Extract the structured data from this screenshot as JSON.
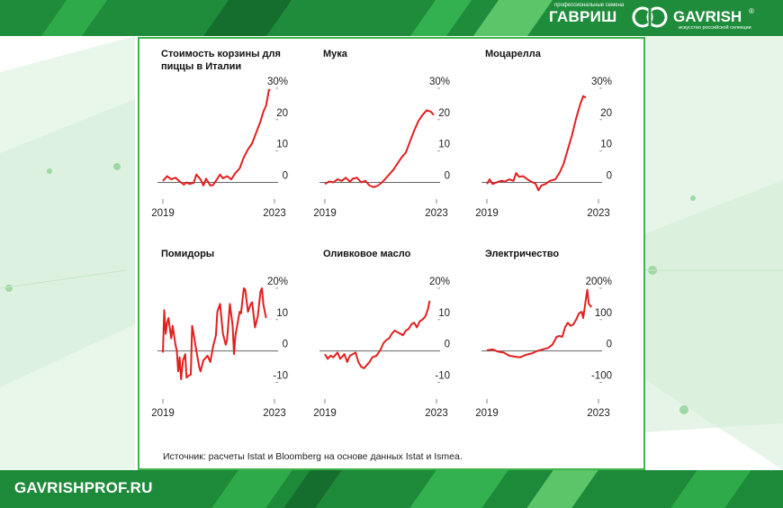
{
  "header": {
    "logo_tagline_top": "профессиональные семена",
    "logo_text_ru": "ГАВРИШ",
    "logo_text_lat": "GAVRISH",
    "logo_tagline_bottom": "искусство российской селекции",
    "logo_reg": "®"
  },
  "footer": {
    "site_url": "GAVRISHPROF.RU"
  },
  "source_note": "Источник: расчеты Istat и Bloomberg на основе данных Istat и Ismea.",
  "colors": {
    "line": "#e02020",
    "brand_green": "#1f8c3b",
    "panel_border": "#3db54a"
  },
  "chart_data": [
    {
      "type": "line",
      "title": "Стоимость корзины для пиццы в Италии",
      "yticks": [
        "30%",
        "20",
        "10",
        "0"
      ],
      "yvalues": [
        30,
        20,
        10,
        0
      ],
      "ylim": [
        -3,
        32
      ],
      "xlabels": [
        "2019",
        "2023"
      ],
      "xrange": [
        2019,
        2023
      ],
      "series": [
        {
          "values": [
            [
              2019.0,
              0.5
            ],
            [
              2019.15,
              2.0
            ],
            [
              2019.3,
              1.0
            ],
            [
              2019.45,
              1.5
            ],
            [
              2019.6,
              0.3
            ],
            [
              2019.75,
              -0.7
            ],
            [
              2019.85,
              0.0
            ],
            [
              2019.95,
              -0.5
            ],
            [
              2020.1,
              -0.2
            ],
            [
              2020.2,
              2.5
            ],
            [
              2020.35,
              1.0
            ],
            [
              2020.45,
              -1.0
            ],
            [
              2020.55,
              1.2
            ],
            [
              2020.7,
              -1.0
            ],
            [
              2020.8,
              -0.8
            ],
            [
              2020.9,
              0.5
            ],
            [
              2021.05,
              2.5
            ],
            [
              2021.15,
              1.3
            ],
            [
              2021.3,
              2.0
            ],
            [
              2021.45,
              1.0
            ],
            [
              2021.6,
              3.0
            ],
            [
              2021.75,
              4.5
            ],
            [
              2021.9,
              8.0
            ],
            [
              2022.05,
              10.5
            ],
            [
              2022.2,
              12.5
            ],
            [
              2022.35,
              16.0
            ],
            [
              2022.5,
              19.5
            ],
            [
              2022.6,
              22.5
            ],
            [
              2022.7,
              24.5
            ],
            [
              2022.8,
              29.5
            ],
            [
              2022.85,
              29.5
            ]
          ]
        }
      ]
    },
    {
      "type": "line",
      "title": "Мука",
      "yticks": [
        "30%",
        "20",
        "10",
        "0"
      ],
      "yvalues": [
        30,
        20,
        10,
        0
      ],
      "ylim": [
        -3,
        32
      ],
      "xlabels": [
        "2019",
        "2023"
      ],
      "xrange": [
        2019,
        2023
      ],
      "series": [
        {
          "values": [
            [
              2019.0,
              -0.5
            ],
            [
              2019.15,
              0.3
            ],
            [
              2019.3,
              0.0
            ],
            [
              2019.45,
              1.0
            ],
            [
              2019.6,
              0.5
            ],
            [
              2019.75,
              1.5
            ],
            [
              2019.9,
              0.2
            ],
            [
              2020.0,
              1.2
            ],
            [
              2020.15,
              1.5
            ],
            [
              2020.3,
              0.0
            ],
            [
              2020.45,
              0.5
            ],
            [
              2020.6,
              -1.0
            ],
            [
              2020.75,
              -1.5
            ],
            [
              2020.9,
              -1.0
            ],
            [
              2021.05,
              0.0
            ],
            [
              2021.25,
              2.0
            ],
            [
              2021.45,
              4.0
            ],
            [
              2021.6,
              6.0
            ],
            [
              2021.75,
              8.0
            ],
            [
              2021.9,
              9.5
            ],
            [
              2022.05,
              13.0
            ],
            [
              2022.2,
              16.5
            ],
            [
              2022.35,
              19.5
            ],
            [
              2022.5,
              21.5
            ],
            [
              2022.65,
              23.0
            ],
            [
              2022.8,
              22.5
            ],
            [
              2022.9,
              21.5
            ]
          ]
        }
      ]
    },
    {
      "type": "line",
      "title": "Моцарелла",
      "yticks": [
        "30%",
        "20",
        "10",
        "0"
      ],
      "yvalues": [
        30,
        20,
        10,
        0
      ],
      "ylim": [
        -3,
        32
      ],
      "xlabels": [
        "2019",
        "2023"
      ],
      "xrange": [
        2019,
        2023
      ],
      "series": [
        {
          "values": [
            [
              2019.0,
              -0.5
            ],
            [
              2019.1,
              1.0
            ],
            [
              2019.2,
              -0.5
            ],
            [
              2019.35,
              0.0
            ],
            [
              2019.5,
              0.5
            ],
            [
              2019.65,
              0.3
            ],
            [
              2019.8,
              1.0
            ],
            [
              2019.95,
              0.5
            ],
            [
              2020.05,
              3.0
            ],
            [
              2020.15,
              1.8
            ],
            [
              2020.3,
              2.0
            ],
            [
              2020.45,
              1.0
            ],
            [
              2020.6,
              0.2
            ],
            [
              2020.75,
              -0.5
            ],
            [
              2020.85,
              -2.5
            ],
            [
              2020.95,
              -1.0
            ],
            [
              2021.1,
              -0.5
            ],
            [
              2021.25,
              0.5
            ],
            [
              2021.45,
              1.0
            ],
            [
              2021.6,
              3.0
            ],
            [
              2021.75,
              6.0
            ],
            [
              2021.9,
              10.5
            ],
            [
              2022.05,
              15.0
            ],
            [
              2022.2,
              20.5
            ],
            [
              2022.35,
              25.0
            ],
            [
              2022.45,
              27.5
            ],
            [
              2022.55,
              27.0
            ]
          ]
        }
      ]
    },
    {
      "type": "line",
      "title": "Помидоры",
      "yticks": [
        "20%",
        "10",
        "0",
        "-10"
      ],
      "yvalues": [
        20,
        10,
        0,
        -10
      ],
      "ylim": [
        -13,
        22
      ],
      "xlabels": [
        "2019",
        "2023"
      ],
      "xrange": [
        2019,
        2023
      ],
      "series": [
        {
          "values": [
            [
              2019.0,
              -0.5
            ],
            [
              2019.05,
              13.0
            ],
            [
              2019.1,
              5.5
            ],
            [
              2019.15,
              9.0
            ],
            [
              2019.2,
              10.5
            ],
            [
              2019.25,
              7.0
            ],
            [
              2019.3,
              4.0
            ],
            [
              2019.35,
              8.0
            ],
            [
              2019.45,
              2.0
            ],
            [
              2019.5,
              0.0
            ],
            [
              2019.55,
              -6.5
            ],
            [
              2019.6,
              -2.0
            ],
            [
              2019.65,
              -9.0
            ],
            [
              2019.72,
              -3.0
            ],
            [
              2019.8,
              -1.0
            ],
            [
              2019.85,
              -8.5
            ],
            [
              2019.9,
              -8.0
            ],
            [
              2020.0,
              -7.5
            ],
            [
              2020.05,
              8.0
            ],
            [
              2020.1,
              5.5
            ],
            [
              2020.2,
              0.0
            ],
            [
              2020.3,
              -5.0
            ],
            [
              2020.35,
              -6.5
            ],
            [
              2020.45,
              -3.0
            ],
            [
              2020.6,
              -1.5
            ],
            [
              2020.7,
              -3.5
            ],
            [
              2020.8,
              1.5
            ],
            [
              2020.9,
              5.0
            ],
            [
              2020.95,
              12.5
            ],
            [
              2021.05,
              15.0
            ],
            [
              2021.15,
              5.5
            ],
            [
              2021.25,
              2.0
            ],
            [
              2021.3,
              3.5
            ],
            [
              2021.4,
              15.0
            ],
            [
              2021.5,
              8.0
            ],
            [
              2021.55,
              -1.0
            ],
            [
              2021.6,
              5.0
            ],
            [
              2021.7,
              10.0
            ],
            [
              2021.75,
              12.5
            ],
            [
              2021.8,
              12.0
            ],
            [
              2021.9,
              20.0
            ],
            [
              2021.95,
              19.5
            ],
            [
              2022.05,
              12.5
            ],
            [
              2022.15,
              15.0
            ],
            [
              2022.2,
              15.5
            ],
            [
              2022.3,
              7.5
            ],
            [
              2022.4,
              11.0
            ],
            [
              2022.5,
              19.0
            ],
            [
              2022.55,
              20.0
            ],
            [
              2022.6,
              15.0
            ],
            [
              2022.65,
              12.5
            ],
            [
              2022.7,
              10.5
            ]
          ]
        }
      ]
    },
    {
      "type": "line",
      "title": "Оливковое масло",
      "yticks": [
        "20%",
        "10",
        "0",
        "-10"
      ],
      "yvalues": [
        20,
        10,
        0,
        -10
      ],
      "ylim": [
        -13,
        22
      ],
      "xlabels": [
        "2019",
        "2023"
      ],
      "xrange": [
        2019,
        2023
      ],
      "series": [
        {
          "values": [
            [
              2019.0,
              -1.0
            ],
            [
              2019.1,
              -2.5
            ],
            [
              2019.2,
              -1.5
            ],
            [
              2019.3,
              -2.0
            ],
            [
              2019.45,
              -0.5
            ],
            [
              2019.55,
              -2.5
            ],
            [
              2019.7,
              -1.0
            ],
            [
              2019.8,
              -3.5
            ],
            [
              2019.9,
              -1.5
            ],
            [
              2020.0,
              -1.0
            ],
            [
              2020.1,
              -0.5
            ],
            [
              2020.2,
              -3.5
            ],
            [
              2020.3,
              -5.0
            ],
            [
              2020.4,
              -5.5
            ],
            [
              2020.5,
              -4.5
            ],
            [
              2020.6,
              -3.5
            ],
            [
              2020.7,
              -2.0
            ],
            [
              2020.85,
              -1.5
            ],
            [
              2021.0,
              0.5
            ],
            [
              2021.1,
              2.5
            ],
            [
              2021.2,
              3.5
            ],
            [
              2021.3,
              4.0
            ],
            [
              2021.4,
              5.5
            ],
            [
              2021.5,
              6.5
            ],
            [
              2021.6,
              6.0
            ],
            [
              2021.7,
              5.5
            ],
            [
              2021.8,
              5.0
            ],
            [
              2021.9,
              6.5
            ],
            [
              2022.0,
              7.0
            ],
            [
              2022.1,
              8.5
            ],
            [
              2022.2,
              9.0
            ],
            [
              2022.3,
              7.5
            ],
            [
              2022.4,
              9.5
            ],
            [
              2022.5,
              10.0
            ],
            [
              2022.6,
              11.0
            ],
            [
              2022.7,
              13.5
            ],
            [
              2022.75,
              16.0
            ]
          ]
        }
      ]
    },
    {
      "type": "line",
      "title": "Электричество",
      "yticks": [
        "200%",
        "100",
        "0",
        "-100"
      ],
      "yvalues": [
        200,
        100,
        0,
        -100
      ],
      "ylim": [
        -130,
        220
      ],
      "xlabels": [
        "2019",
        "2023"
      ],
      "xrange": [
        2019,
        2023
      ],
      "series": [
        {
          "values": [
            [
              2019.0,
              2.0
            ],
            [
              2019.2,
              5.0
            ],
            [
              2019.4,
              -2.0
            ],
            [
              2019.6,
              -5.0
            ],
            [
              2019.8,
              -15.0
            ],
            [
              2020.0,
              -18.0
            ],
            [
              2020.2,
              -20.0
            ],
            [
              2020.4,
              -12.0
            ],
            [
              2020.6,
              -8.0
            ],
            [
              2020.8,
              0.0
            ],
            [
              2021.0,
              5.0
            ],
            [
              2021.2,
              10.0
            ],
            [
              2021.35,
              20.0
            ],
            [
              2021.5,
              45.0
            ],
            [
              2021.6,
              48.0
            ],
            [
              2021.7,
              45.0
            ],
            [
              2021.8,
              75.0
            ],
            [
              2021.9,
              90.0
            ],
            [
              2022.0,
              80.0
            ],
            [
              2022.1,
              85.0
            ],
            [
              2022.2,
              100.0
            ],
            [
              2022.3,
              120.0
            ],
            [
              2022.4,
              125.0
            ],
            [
              2022.45,
              105.0
            ],
            [
              2022.55,
              165.0
            ],
            [
              2022.6,
              195.0
            ],
            [
              2022.65,
              150.0
            ],
            [
              2022.75,
              140.0
            ]
          ]
        }
      ]
    }
  ]
}
